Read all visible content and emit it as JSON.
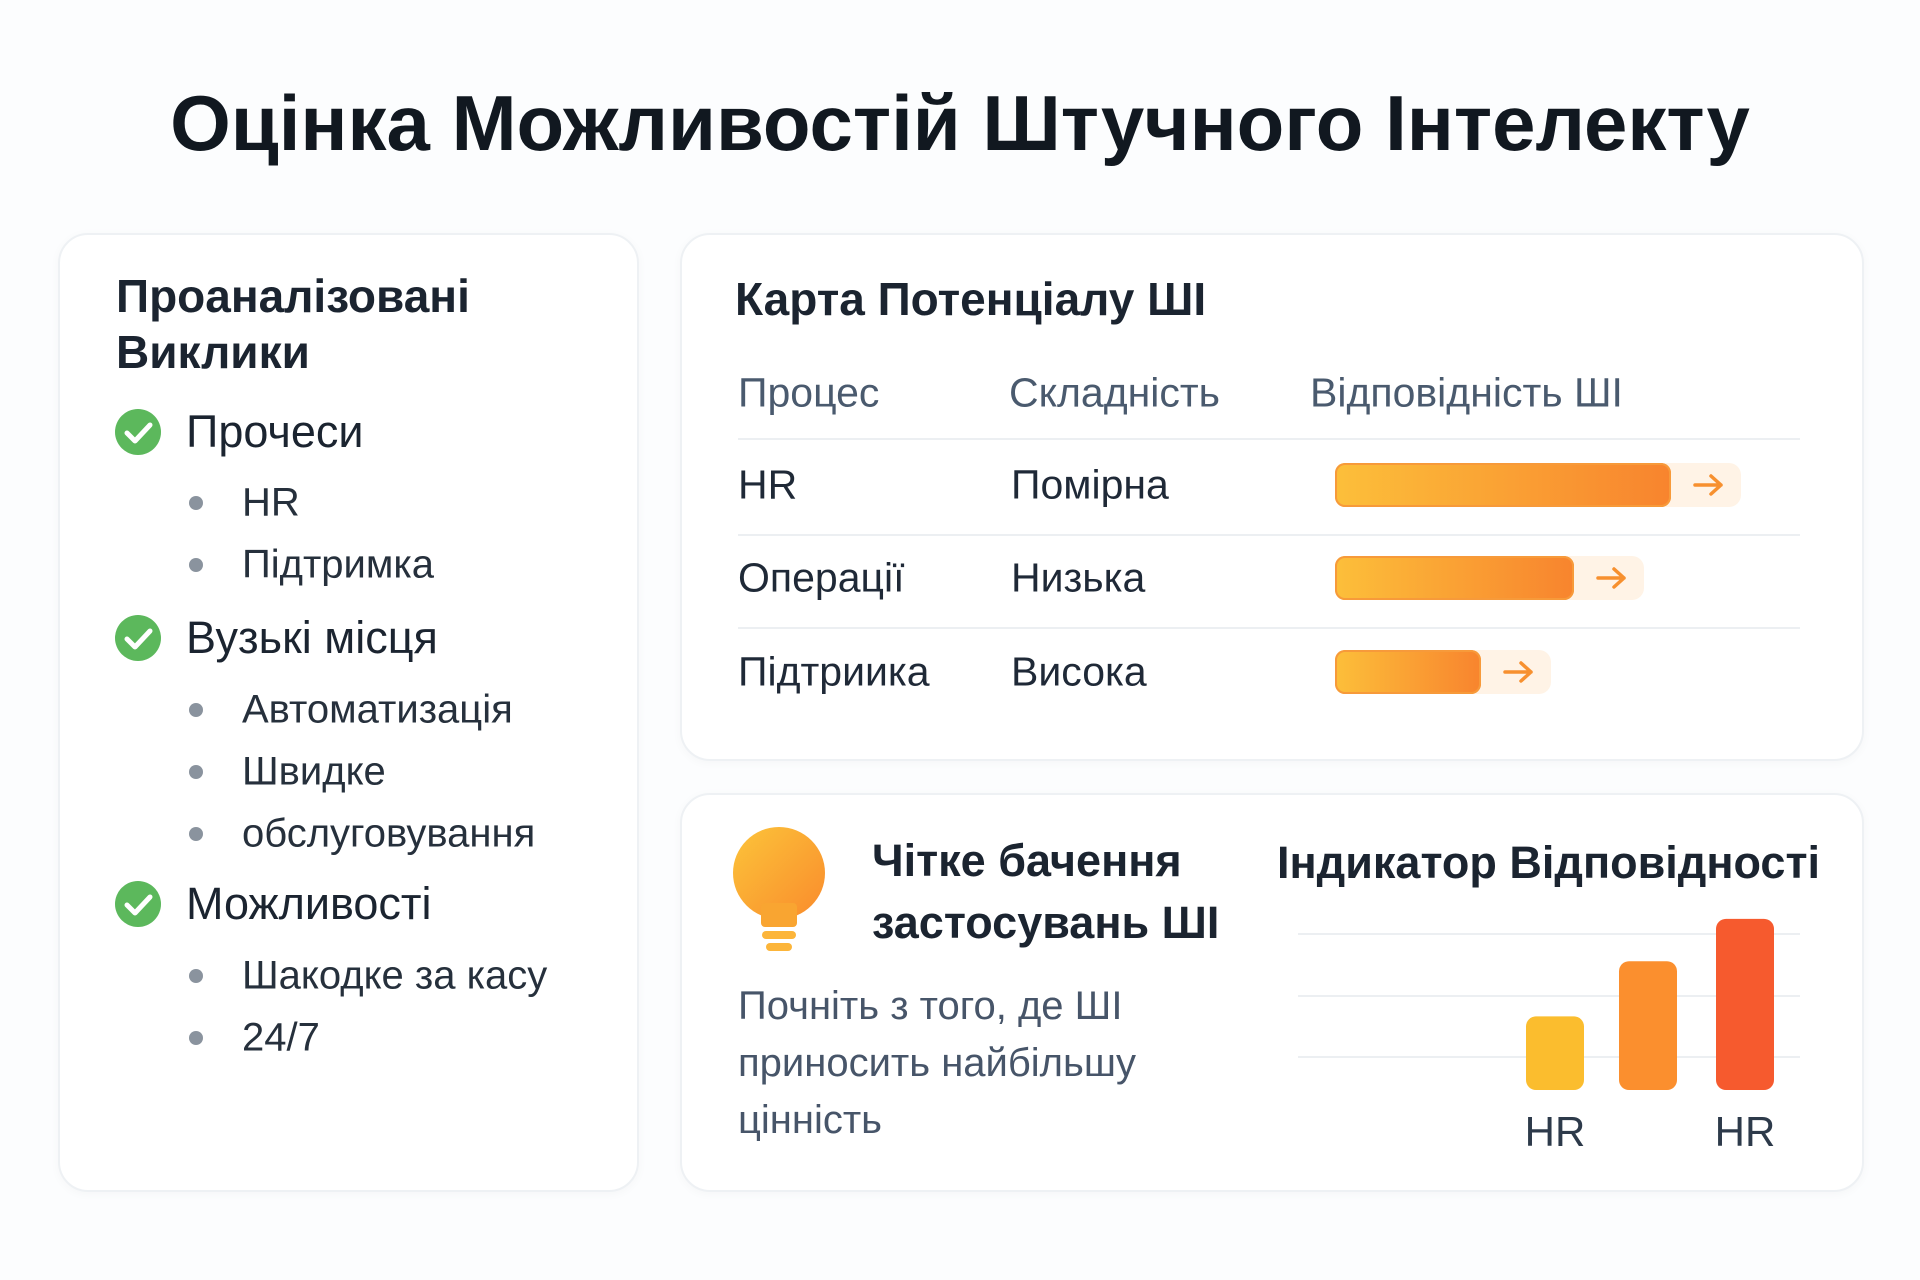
{
  "header": {
    "title": "Оцінка Можливостій Штучного Інтелекту"
  },
  "challenges": {
    "title": "Проаналізовані Виклики",
    "groups": [
      {
        "title": "Прочеси",
        "items": [
          "HR",
          "Підтримка"
        ]
      },
      {
        "title": "Вузькі місця",
        "items": [
          "Автоматизація",
          "Швидке",
          "обслуговування"
        ]
      },
      {
        "title": "Можливості",
        "items": [
          "Шакодке за касу",
          "24/7"
        ]
      }
    ]
  },
  "potential_map": {
    "title": "Карта Потенціалу ШІ",
    "columns": [
      "Процес",
      "Складність",
      "Відповідність ШІ"
    ],
    "rows": [
      {
        "process": "HR",
        "complexity": "Помірна",
        "fit": 83
      },
      {
        "process": "Операції",
        "complexity": "Низька",
        "fit": 59
      },
      {
        "process": "Підтриика",
        "complexity": "Висока",
        "fit": 36
      }
    ]
  },
  "vision": {
    "title": "Чітке бачення застосувань ШІ",
    "text": "Почніть з того, де ШІ приносить найбільшу цінність"
  },
  "chart_data": {
    "type": "bar",
    "title": "Індикатор Відповідності",
    "categories": [
      "HR",
      null,
      "HR"
    ],
    "values": [
      40,
      70,
      93
    ],
    "colors": [
      "#fbbd2e",
      "#fb8f2e",
      "#f65a2e"
    ]
  }
}
